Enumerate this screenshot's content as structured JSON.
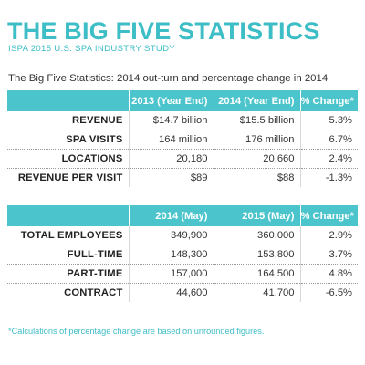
{
  "header": {
    "title": "THE BIG FIVE STATISTICS",
    "subtitle": "ISPA 2015 U.S. SPA INDUSTRY STUDY",
    "caption": "The Big Five Statistics: 2014 out-turn and percentage change in 2014"
  },
  "table1": {
    "headers": [
      "",
      "2013 (Year End)",
      "2014 (Year End)",
      "% Change*"
    ],
    "rows": [
      [
        "REVENUE",
        "$14.7 billion",
        "$15.5 billion",
        "5.3%"
      ],
      [
        "SPA VISITS",
        "164 million",
        "176 million",
        "6.7%"
      ],
      [
        "LOCATIONS",
        "20,180",
        "20,660",
        "2.4%"
      ],
      [
        "REVENUE PER VISIT",
        "$89",
        "$88",
        "-1.3%"
      ]
    ]
  },
  "table2": {
    "headers": [
      "",
      "2014 (May)",
      "2015 (May)",
      "% Change*"
    ],
    "rows": [
      [
        "TOTAL EMPLOYEES",
        "349,900",
        "360,000",
        "2.9%"
      ],
      [
        "FULL-TIME",
        "148,300",
        "153,800",
        "3.7%"
      ],
      [
        "PART-TIME",
        "157,000",
        "164,500",
        "4.8%"
      ],
      [
        "CONTRACT",
        "44,600",
        "41,700",
        "-6.5%"
      ]
    ]
  },
  "footnote": "*Calculations of percentage change are based on unrounded figures.",
  "colors": {
    "accent": "#3dbdc6",
    "header_fill": "#4cc4cc"
  }
}
